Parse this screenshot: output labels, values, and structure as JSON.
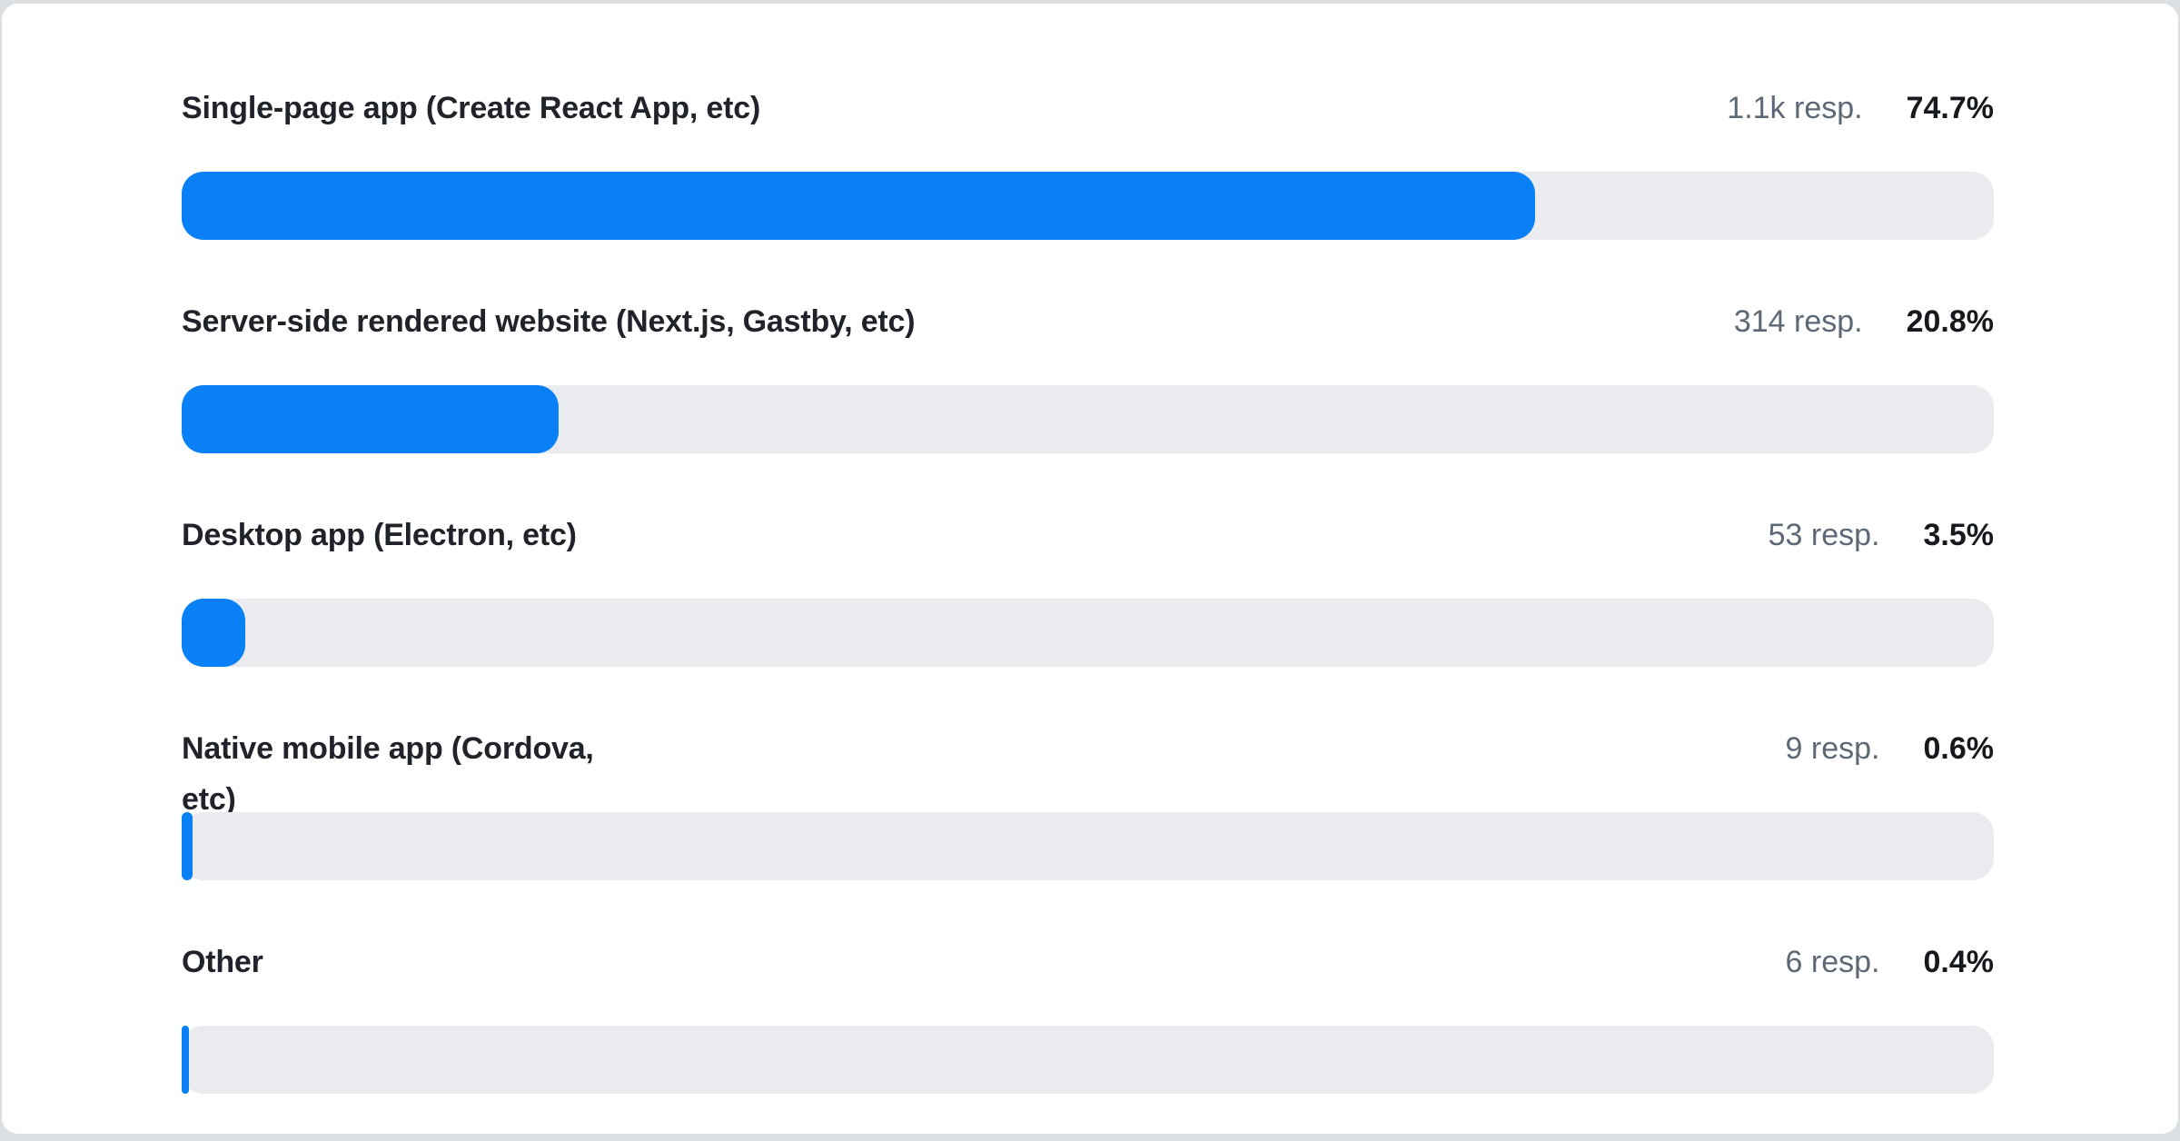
{
  "colors": {
    "bar": "#0a80f6",
    "track": "#e9ebee",
    "label_text": "#20242a",
    "resp_text": "#5d6876",
    "percent_text": "#16191d",
    "card_bg": "#ffffff",
    "page_bg": "#dce0e3"
  },
  "chart_data": {
    "type": "bar",
    "orientation": "horizontal",
    "title": "",
    "xlabel": "",
    "ylabel": "",
    "xlim": [
      0,
      100
    ],
    "grid": false,
    "legend": false,
    "categories": [
      "Single-page app (Create React App, etc)",
      "Server-side rendered website (Next.js, Gastby, etc)",
      "Desktop app (Electron, etc)",
      "Native mobile app (Cordova, etc)",
      "Other"
    ],
    "values_percent": [
      74.7,
      20.8,
      3.5,
      0.6,
      0.4
    ],
    "responses_display": [
      "1.1k resp.",
      "314 resp.",
      "53 resp.",
      "9 resp.",
      "6 resp."
    ],
    "bar_color": "#0a80f6",
    "track_color": "#e9ebee"
  },
  "rows": [
    {
      "label": "Single-page app (Create React App, etc)",
      "resp": "1.1k resp.",
      "percent": "74.7%",
      "value_percent": 74.7
    },
    {
      "label": "Server-side rendered website (Next.js, Gastby, etc)",
      "resp": "314 resp.",
      "percent": "20.8%",
      "value_percent": 20.8
    },
    {
      "label": "Desktop app (Electron, etc)",
      "resp": "53 resp.",
      "percent": "3.5%",
      "value_percent": 3.5
    },
    {
      "label": "Native mobile app (Cordova,\netc)",
      "resp": "9 resp.",
      "percent": "0.6%",
      "value_percent": 0.6
    },
    {
      "label": "Other",
      "resp": "6 resp.",
      "percent": "0.4%",
      "value_percent": 0.4
    }
  ]
}
